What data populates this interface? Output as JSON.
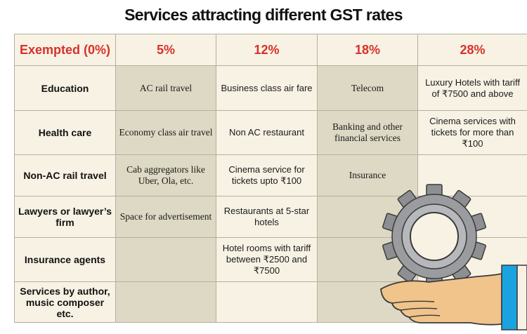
{
  "title": "Services attracting different GST rates",
  "columns": [
    "Exempted (0%)",
    "5%",
    "12%",
    "18%",
    "28%"
  ],
  "rows": [
    {
      "exempted": "Education",
      "r5": "AC rail travel",
      "r12": "Business class air fare",
      "r18": "Telecom",
      "r28": "Luxury Hotels with tariff of ₹7500 and above"
    },
    {
      "exempted": "Health care",
      "r5": "Economy class air travel",
      "r12": "Non AC restaurant",
      "r18": "Banking  and other financial services",
      "r28": "Cinema services with tickets for more than ₹100"
    },
    {
      "exempted": "Non-AC rail travel",
      "r5": "Cab aggregators like Uber, Ola, etc.",
      "r12": "Cinema service for tickets upto ₹100",
      "r18": "Insurance",
      "r28": ""
    },
    {
      "exempted": "Lawyers or lawyer’s firm",
      "r5": "Space for advertisement",
      "r12": "Restaurants at 5-star hotels",
      "r18": "",
      "r28": ""
    },
    {
      "exempted": "Insurance agents",
      "r5": "",
      "r12": "Hotel rooms with tariff between ₹2500 and ₹7500",
      "r18": "",
      "r28": ""
    },
    {
      "exempted": "Services by author, music composer etc.",
      "r5": "",
      "r12": "",
      "r18": "",
      "r28": ""
    }
  ],
  "colors": {
    "header_text": "#d8312b",
    "band_dark": "#ddd9c4",
    "band_light": "#f7f2e4",
    "gear": "#8e8f93",
    "hand": "#f0c48a",
    "cuff": "#1aa3e0"
  }
}
